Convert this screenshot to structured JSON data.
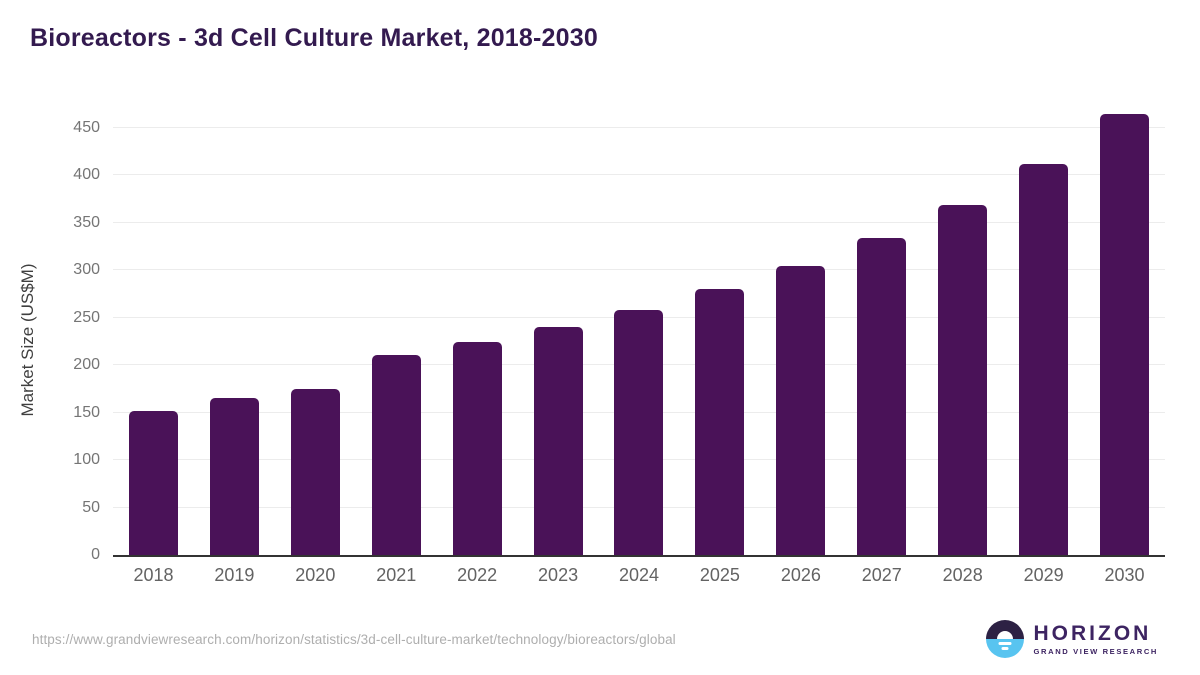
{
  "title": "Bioreactors - 3d Cell Culture Market, 2018-2030",
  "chart_data": {
    "type": "bar",
    "title": "Bioreactors - 3d Cell Culture Market, 2018-2030",
    "categories": [
      "2018",
      "2019",
      "2020",
      "2021",
      "2022",
      "2023",
      "2024",
      "2025",
      "2026",
      "2027",
      "2028",
      "2029",
      "2030"
    ],
    "values": [
      152,
      166,
      175,
      211,
      225,
      240,
      258,
      280,
      305,
      334,
      369,
      412,
      465
    ],
    "xlabel": "",
    "ylabel": "Market Size (US$M)",
    "ylim": [
      0,
      469
    ],
    "yticks": [
      0,
      50,
      100,
      150,
      200,
      250,
      300,
      350,
      400,
      450
    ],
    "grid": true,
    "legend": "none",
    "bar_color": "#4a1258",
    "gridline_color": "#ececec",
    "axis_line_color": "#333333",
    "tick_label_color": "#757575",
    "title_color": "#331a4f"
  },
  "footer": {
    "source_url": "https://www.grandviewresearch.com/horizon/statistics/3d-cell-culture-market/technology/bioreactors/global",
    "logo": {
      "name": "HORIZON",
      "subtitle": "GRAND VIEW RESEARCH",
      "icon": "horizon-sun-over-water-icon",
      "dark_color": "#2d2144",
      "light_color": "#58c4f0",
      "text_color": "#3d2462"
    }
  }
}
